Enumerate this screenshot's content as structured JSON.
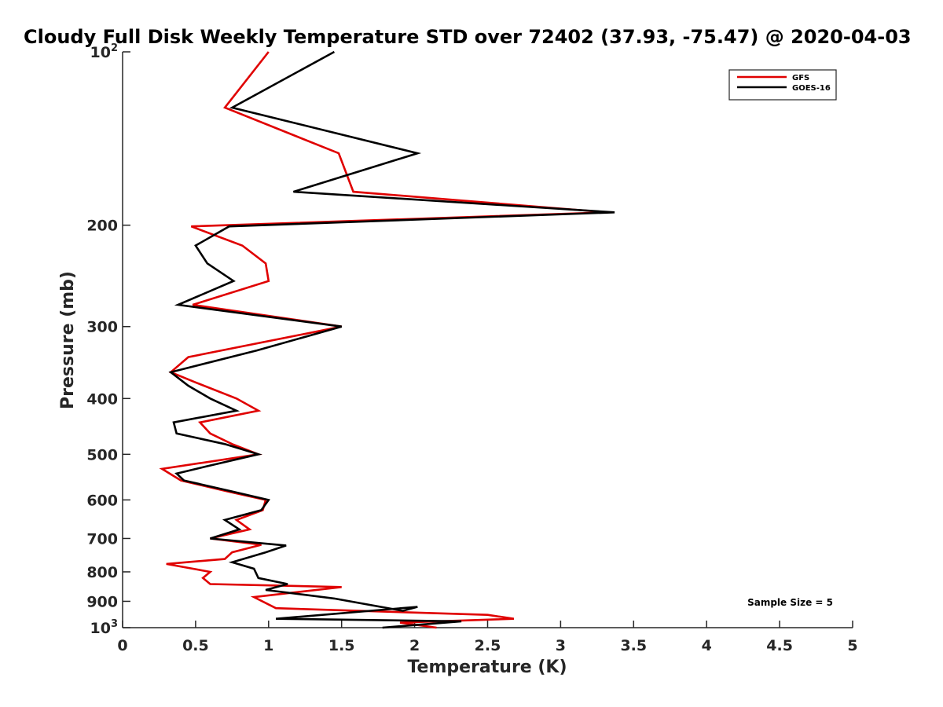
{
  "chart_data": {
    "type": "line",
    "title": "Cloudy Full Disk Weekly Temperature STD over 72402 (37.93, -75.47) @ 2020-04-03",
    "xlabel": "Temperature (K)",
    "ylabel": "Pressure (mb)",
    "xlim": [
      0,
      5
    ],
    "ylim": [
      100,
      1000
    ],
    "y_scale": "log",
    "y_reversed": true,
    "x_ticks": [
      "0",
      "0.5",
      "1",
      "1.5",
      "2",
      "2.5",
      "3",
      "3.5",
      "4",
      "4.5",
      "5"
    ],
    "y_ticks": [
      {
        "value": 100,
        "label": "10",
        "sup": "2"
      },
      {
        "value": 200,
        "label": "200",
        "sup": ""
      },
      {
        "value": 300,
        "label": "300",
        "sup": ""
      },
      {
        "value": 400,
        "label": "400",
        "sup": ""
      },
      {
        "value": 500,
        "label": "500",
        "sup": ""
      },
      {
        "value": 600,
        "label": "600",
        "sup": ""
      },
      {
        "value": 700,
        "label": "700",
        "sup": ""
      },
      {
        "value": 800,
        "label": "800",
        "sup": ""
      },
      {
        "value": 900,
        "label": "900",
        "sup": ""
      },
      {
        "value": 1000,
        "label": "10",
        "sup": "3"
      }
    ],
    "grid": false,
    "legend_position": "top-right",
    "annotation": "Sample Size = 5",
    "series": [
      {
        "name": "GFS",
        "color": "#e00000",
        "points": [
          [
            1.0,
            100
          ],
          [
            0.7,
            125
          ],
          [
            1.48,
            150
          ],
          [
            1.58,
            175
          ],
          [
            3.32,
            190
          ],
          [
            0.47,
            201
          ],
          [
            0.82,
            217
          ],
          [
            0.98,
            233
          ],
          [
            1.0,
            250
          ],
          [
            0.48,
            275
          ],
          [
            1.5,
            300
          ],
          [
            0.45,
            339
          ],
          [
            0.33,
            360
          ],
          [
            0.5,
            375
          ],
          [
            0.78,
            400
          ],
          [
            0.93,
            420
          ],
          [
            0.53,
            440
          ],
          [
            0.6,
            460
          ],
          [
            0.75,
            480
          ],
          [
            0.93,
            500
          ],
          [
            0.27,
            530
          ],
          [
            0.4,
            555
          ],
          [
            0.72,
            580
          ],
          [
            0.98,
            600
          ],
          [
            0.96,
            625
          ],
          [
            0.78,
            650
          ],
          [
            0.87,
            675
          ],
          [
            0.6,
            700
          ],
          [
            0.95,
            718
          ],
          [
            0.75,
            740
          ],
          [
            0.7,
            760
          ],
          [
            0.3,
            775
          ],
          [
            0.6,
            800
          ],
          [
            0.55,
            820
          ],
          [
            0.6,
            840
          ],
          [
            1.5,
            850
          ],
          [
            0.9,
            885
          ],
          [
            1.05,
            925
          ],
          [
            2.5,
            950
          ],
          [
            2.68,
            965
          ],
          [
            1.9,
            980
          ],
          [
            2.15,
            1000
          ]
        ]
      },
      {
        "name": "GOES-16",
        "color": "#000000",
        "points": [
          [
            1.45,
            100
          ],
          [
            0.75,
            125
          ],
          [
            2.02,
            150
          ],
          [
            1.17,
            175
          ],
          [
            3.37,
            190
          ],
          [
            0.73,
            201
          ],
          [
            0.5,
            217
          ],
          [
            0.58,
            233
          ],
          [
            0.76,
            250
          ],
          [
            0.38,
            275
          ],
          [
            1.5,
            300
          ],
          [
            0.92,
            330
          ],
          [
            0.33,
            360
          ],
          [
            0.45,
            380
          ],
          [
            0.6,
            400
          ],
          [
            0.78,
            420
          ],
          [
            0.35,
            440
          ],
          [
            0.37,
            460
          ],
          [
            0.7,
            480
          ],
          [
            0.93,
            500
          ],
          [
            0.57,
            525
          ],
          [
            0.37,
            540
          ],
          [
            0.42,
            555
          ],
          [
            0.75,
            580
          ],
          [
            1.0,
            600
          ],
          [
            0.95,
            625
          ],
          [
            0.7,
            650
          ],
          [
            0.8,
            675
          ],
          [
            0.6,
            700
          ],
          [
            1.12,
            720
          ],
          [
            0.98,
            740
          ],
          [
            0.75,
            770
          ],
          [
            0.9,
            790
          ],
          [
            0.93,
            820
          ],
          [
            1.13,
            840
          ],
          [
            0.98,
            860
          ],
          [
            1.45,
            890
          ],
          [
            1.92,
            935
          ],
          [
            2.02,
            920
          ],
          [
            1.05,
            965
          ],
          [
            2.32,
            975
          ],
          [
            1.78,
            1000
          ]
        ]
      }
    ]
  }
}
